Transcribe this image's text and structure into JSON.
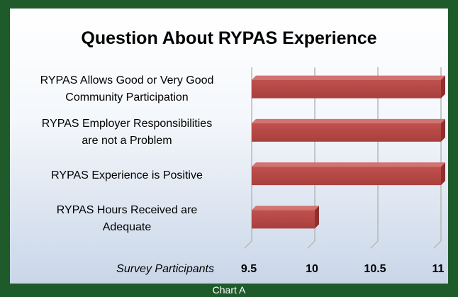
{
  "chart_data": {
    "type": "bar",
    "orientation": "horizontal",
    "title": "Question About RYPAS Experience",
    "categories": [
      "RYPAS Allows Good or Very Good\nCommunity Participation",
      "RYPAS Employer Responsibilities\nare not a Problem",
      "RYPAS Experience is Positive",
      "RYPAS Hours Received are\nAdequate"
    ],
    "values": [
      11,
      11,
      11,
      10
    ],
    "color": "#c0504d",
    "x_label": "Survey Participants",
    "xlim": [
      9.5,
      11
    ],
    "xticks": [
      9.5,
      10,
      10.5,
      11
    ],
    "grid": true,
    "caption": "Chart A"
  }
}
